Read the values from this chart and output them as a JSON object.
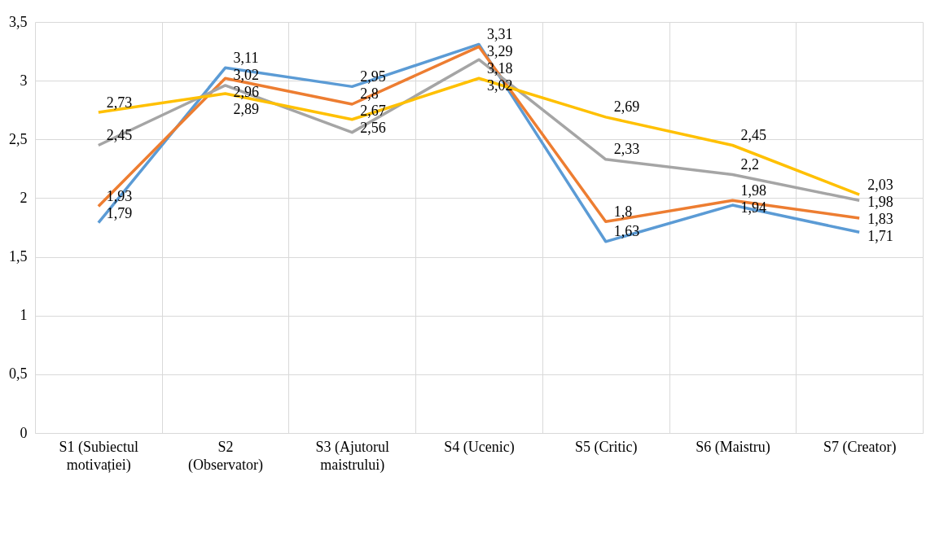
{
  "chart_data": {
    "type": "line",
    "categories": [
      "S1 (Subiectul motivației)",
      "S2 (Observator)",
      "S3 (Ajutorul maistrului)",
      "S4 (Ucenic)",
      "S5 (Critic)",
      "S6 (Maistru)",
      "S7 (Creator)"
    ],
    "series": [
      {
        "color": "#5b9bd5",
        "values": [
          1.79,
          3.11,
          2.95,
          3.31,
          1.63,
          1.94,
          1.71
        ],
        "value_labels": [
          "1,79",
          "3,11",
          "2,95",
          "3,31",
          "1,63",
          "1,94",
          "1,71"
        ]
      },
      {
        "color": "#ed7d31",
        "values": [
          1.93,
          3.02,
          2.8,
          3.29,
          1.8,
          1.98,
          1.83
        ],
        "value_labels": [
          "1,93",
          "3,02",
          "2,8",
          "3,29",
          "1,8",
          "1,98",
          "1,83"
        ]
      },
      {
        "color": "#a5a5a5",
        "values": [
          2.45,
          2.96,
          2.56,
          3.18,
          2.33,
          2.2,
          1.98
        ],
        "value_labels": [
          "2,45",
          "2,96",
          "2,56",
          "3,18",
          "2,33",
          "2,2",
          "1,98"
        ]
      },
      {
        "color": "#ffc000",
        "values": [
          2.73,
          2.89,
          2.67,
          3.02,
          2.69,
          2.45,
          2.03
        ],
        "value_labels": [
          "2,73",
          "2,89",
          "2,67",
          "3,02",
          "2,69",
          "2,45",
          "2,03"
        ]
      }
    ],
    "ylim": [
      0,
      3.5
    ],
    "yticks": [
      0,
      {
        "value": 0.5,
        "label": "0,5"
      },
      1,
      {
        "value": 1.5,
        "label": "1,5"
      },
      2,
      {
        "value": 2.5,
        "label": "2,5"
      },
      3,
      {
        "value": 3.5,
        "label": "3,5"
      }
    ],
    "grid": true,
    "marker": "none",
    "line_style": "solid"
  }
}
